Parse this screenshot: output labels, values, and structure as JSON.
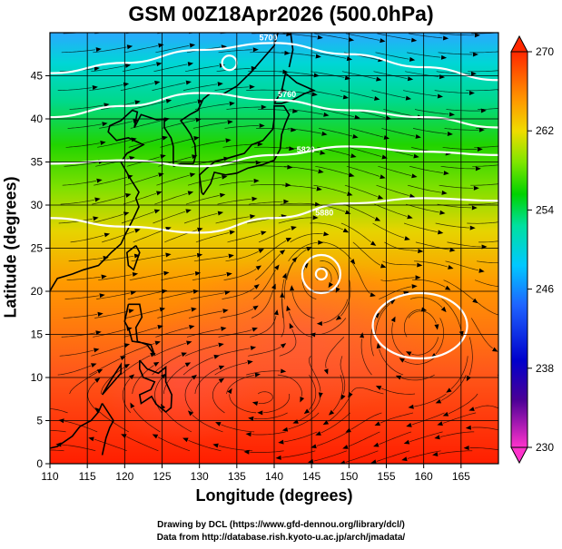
{
  "title": "GSM 00Z18Apr2026 (500.0hPa)",
  "x_axis": {
    "label": "Longitude (degrees)",
    "ticks": [
      "110",
      "115",
      "120",
      "125",
      "130",
      "135",
      "140",
      "145",
      "150",
      "155",
      "160",
      "165"
    ],
    "range": [
      110,
      170
    ]
  },
  "y_axis": {
    "label": "Latitude  (degrees)",
    "ticks": [
      "0",
      "5",
      "10",
      "15",
      "20",
      "25",
      "30",
      "35",
      "40",
      "45"
    ],
    "range": [
      0,
      50
    ]
  },
  "colorbar": {
    "ticks": [
      "230",
      "238",
      "246",
      "254",
      "262",
      "270"
    ],
    "range": [
      230,
      270
    ]
  },
  "contour_labels": [
    "5700",
    "5760",
    "5820",
    "5880"
  ],
  "credits": {
    "line1": "Drawing by DCL (https://www.gfd-dennou.org/library/dcl/)",
    "line2": "Data from http://database.rish.kyoto-u.ac.jp/arch/jmadata/"
  },
  "chart_data": {
    "type": "heatmap",
    "field": "500hPa temperature (K) shaded, geopotential height contours (white), wind streamlines",
    "lon_range": [
      110,
      170
    ],
    "lat_range": [
      0,
      50
    ],
    "value_range": [
      230,
      270
    ],
    "contours": [
      {
        "label": "5700",
        "lat_at_lon": [
          [
            110,
            45.3
          ],
          [
            120,
            46.5
          ],
          [
            130,
            48.0
          ],
          [
            140,
            48.8
          ],
          [
            150,
            47.5
          ],
          [
            160,
            46.0
          ],
          [
            170,
            44.5
          ]
        ]
      },
      {
        "label": "5760",
        "lat_at_lon": [
          [
            110,
            40.2
          ],
          [
            120,
            41.5
          ],
          [
            130,
            43.0
          ],
          [
            140,
            42.2
          ],
          [
            150,
            41.0
          ],
          [
            160,
            40.2
          ],
          [
            170,
            39.0
          ]
        ]
      },
      {
        "label": "5820",
        "lat_at_lon": [
          [
            110,
            34.8
          ],
          [
            120,
            35.2
          ],
          [
            130,
            34.5
          ],
          [
            140,
            35.8
          ],
          [
            150,
            36.8
          ],
          [
            160,
            36.2
          ],
          [
            170,
            35.8
          ]
        ]
      },
      {
        "label": "5880",
        "lat_at_lon": [
          [
            110,
            28.5
          ],
          [
            120,
            27.5
          ],
          [
            130,
            26.8
          ],
          [
            140,
            28.5
          ],
          [
            150,
            30.2
          ],
          [
            160,
            30.8
          ],
          [
            170,
            30.5
          ]
        ]
      }
    ],
    "highs": [
      {
        "lon": 146.3,
        "lat": 22.0
      },
      {
        "lon": 159.5,
        "lat": 16.0
      }
    ]
  }
}
